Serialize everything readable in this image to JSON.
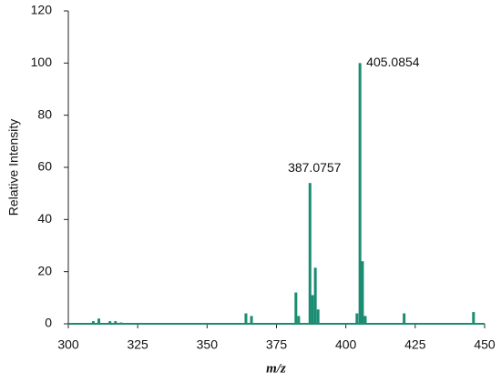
{
  "chart_data": {
    "type": "stem",
    "xlabel": "m/z",
    "ylabel": "Relative Intensity",
    "x": [
      309,
      311,
      315,
      317,
      319,
      364,
      366,
      382,
      383,
      387.0757,
      388,
      389,
      390,
      404,
      405.0854,
      406,
      407,
      421,
      446
    ],
    "values": [
      1,
      2,
      1,
      1,
      0.5,
      4,
      3,
      12,
      3,
      54,
      11,
      21.5,
      5.5,
      4,
      100,
      24,
      3,
      4,
      4.5
    ],
    "peak_labels": [
      null,
      null,
      null,
      null,
      null,
      null,
      null,
      null,
      null,
      "387.0757",
      null,
      null,
      null,
      null,
      "405.0854",
      null,
      null,
      null,
      null
    ],
    "color": "#1b8c72",
    "xlim": [
      300,
      450
    ],
    "xticks": [
      300,
      325,
      350,
      375,
      400,
      425,
      450
    ],
    "ylim": [
      0,
      120
    ],
    "yticks": [
      0,
      20,
      40,
      60,
      80,
      100,
      120
    ]
  }
}
